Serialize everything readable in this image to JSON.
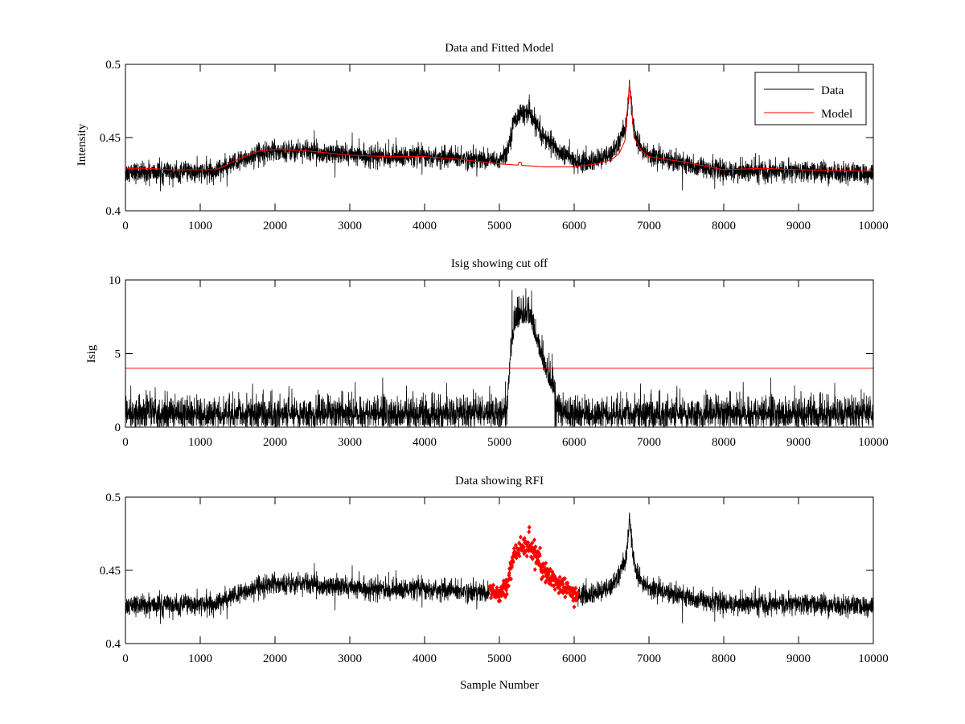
{
  "chart_data": [
    {
      "type": "line",
      "title": "Data and Fitted Model",
      "xlabel": "",
      "ylabel": "Intensity",
      "xlim": [
        0,
        10000
      ],
      "ylim": [
        0.4,
        0.5
      ],
      "xticks": [
        0,
        1000,
        2000,
        3000,
        4000,
        5000,
        6000,
        7000,
        8000,
        9000,
        10000
      ],
      "xtick_labels": [
        "0",
        "1000",
        "2000",
        "3000",
        "4000",
        "5000",
        "6000",
        "7000",
        "8000",
        "9000",
        "10000"
      ],
      "yticks": [
        0.4,
        0.45,
        0.5
      ],
      "ytick_labels": [
        "0.4",
        "0.45",
        "0.5"
      ],
      "legend": {
        "placement": "top-right",
        "entries": [
          "Data",
          "Model"
        ]
      },
      "series": [
        {
          "name": "Data",
          "color": "#000000",
          "noise_sd": 0.0035,
          "x": [
            0,
            1000,
            1200,
            1500,
            1800,
            2000,
            2500,
            3000,
            3500,
            4000,
            4500,
            5000,
            5100,
            5200,
            5300,
            5400,
            5500,
            5600,
            5700,
            5800,
            5900,
            6000,
            6200,
            6400,
            6500,
            6600,
            6700,
            6740,
            6780,
            6850,
            7000,
            7500,
            8000,
            9000,
            10000
          ],
          "y": [
            0.426,
            0.426,
            0.428,
            0.433,
            0.44,
            0.441,
            0.441,
            0.438,
            0.437,
            0.437,
            0.436,
            0.434,
            0.44,
            0.462,
            0.467,
            0.466,
            0.458,
            0.45,
            0.446,
            0.44,
            0.438,
            0.434,
            0.433,
            0.436,
            0.44,
            0.446,
            0.46,
            0.487,
            0.462,
            0.445,
            0.438,
            0.432,
            0.427,
            0.427,
            0.425
          ]
        },
        {
          "name": "Model",
          "color": "#ff0000",
          "x": [
            0,
            300,
            600,
            900,
            1100,
            1200,
            1300,
            1500,
            1800,
            2000,
            2400,
            2800,
            3000,
            3500,
            4000,
            4500,
            5000,
            5300,
            5600,
            6000,
            6300,
            6500,
            6600,
            6680,
            6740,
            6800,
            6900,
            7000,
            7500,
            8000,
            8500,
            9000,
            10000
          ],
          "y": [
            0.429,
            0.429,
            0.428,
            0.428,
            0.428,
            0.428,
            0.43,
            0.435,
            0.441,
            0.442,
            0.441,
            0.439,
            0.438,
            0.437,
            0.437,
            0.435,
            0.432,
            0.431,
            0.43,
            0.43,
            0.432,
            0.435,
            0.439,
            0.448,
            0.487,
            0.45,
            0.441,
            0.437,
            0.433,
            0.428,
            0.429,
            0.428,
            0.427
          ]
        }
      ]
    },
    {
      "type": "line",
      "title": "Isig showing cut off",
      "xlabel": "",
      "ylabel": "Isig",
      "xlim": [
        0,
        10000
      ],
      "ylim": [
        0,
        10
      ],
      "xticks": [
        0,
        1000,
        2000,
        3000,
        4000,
        5000,
        6000,
        7000,
        8000,
        9000,
        10000
      ],
      "xtick_labels": [
        "0",
        "1000",
        "2000",
        "3000",
        "4000",
        "5000",
        "6000",
        "7000",
        "8000",
        "9000",
        "10000"
      ],
      "yticks": [
        0,
        5,
        10
      ],
      "ytick_labels": [
        "0",
        "5",
        "10"
      ],
      "threshold": {
        "value": 4,
        "color": "#ff0000"
      },
      "series": [
        {
          "name": "Isig",
          "color": "#000000",
          "x": [
            0,
            5050,
            5100,
            5200,
            5300,
            5400,
            5500,
            5600,
            5700,
            5800,
            5900,
            6000,
            10000
          ],
          "y": [
            0.8,
            0.8,
            1.5,
            6.5,
            7.0,
            7.0,
            5.5,
            3.5,
            2.5,
            1.2,
            0.8,
            0.8,
            0.8
          ]
        }
      ]
    },
    {
      "type": "scatter",
      "title": "Data showing RFI",
      "xlabel": "Sample Number",
      "ylabel": "",
      "xlim": [
        0,
        10000
      ],
      "ylim": [
        0.4,
        0.5
      ],
      "xticks": [
        0,
        1000,
        2000,
        3000,
        4000,
        5000,
        6000,
        7000,
        8000,
        9000,
        10000
      ],
      "xtick_labels": [
        "0",
        "1000",
        "2000",
        "3000",
        "4000",
        "5000",
        "6000",
        "7000",
        "8000",
        "9000",
        "10000"
      ],
      "yticks": [
        0.4,
        0.45,
        0.5
      ],
      "ytick_labels": [
        "0.4",
        "0.45",
        "0.5"
      ],
      "rfi_range": [
        4870,
        6050
      ],
      "series": [
        {
          "name": "Data",
          "color": "#000000"
        },
        {
          "name": "RFI",
          "color": "#ff0000",
          "marker": "diamond"
        }
      ]
    }
  ]
}
